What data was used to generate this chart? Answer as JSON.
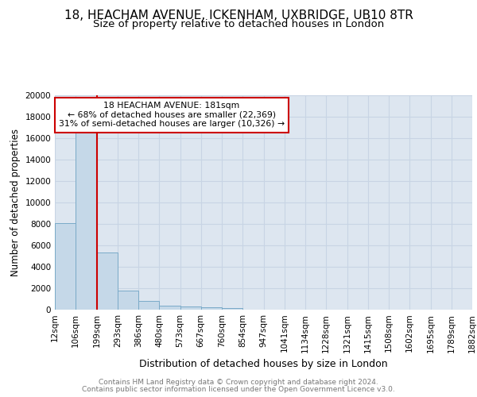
{
  "title1": "18, HEACHAM AVENUE, ICKENHAM, UXBRIDGE, UB10 8TR",
  "title2": "Size of property relative to detached houses in London",
  "xlabel": "Distribution of detached houses by size in London",
  "ylabel": "Number of detached properties",
  "bin_labels": [
    "12sqm",
    "106sqm",
    "199sqm",
    "293sqm",
    "386sqm",
    "480sqm",
    "573sqm",
    "667sqm",
    "760sqm",
    "854sqm",
    "947sqm",
    "1041sqm",
    "1134sqm",
    "1228sqm",
    "1321sqm",
    "1415sqm",
    "1508sqm",
    "1602sqm",
    "1695sqm",
    "1789sqm",
    "1882sqm"
  ],
  "bar_heights": [
    8100,
    16500,
    5300,
    1750,
    800,
    350,
    270,
    230,
    150,
    0,
    0,
    0,
    0,
    0,
    0,
    0,
    0,
    0,
    0,
    0
  ],
  "bar_color": "#c5d8e8",
  "bar_edge_color": "#7aaac8",
  "grid_color": "#c8d4e4",
  "bg_color": "#dde6f0",
  "vline_color": "#cc0000",
  "annotation_line1": "18 HEACHAM AVENUE: 181sqm",
  "annotation_line2": "← 68% of detached houses are smaller (22,369)",
  "annotation_line3": "31% of semi-detached houses are larger (10,326) →",
  "annotation_box_color": "#cc0000",
  "ylim": [
    0,
    20000
  ],
  "yticks": [
    0,
    2000,
    4000,
    6000,
    8000,
    10000,
    12000,
    14000,
    16000,
    18000,
    20000
  ],
  "footer1": "Contains HM Land Registry data © Crown copyright and database right 2024.",
  "footer2": "Contains public sector information licensed under the Open Government Licence v3.0.",
  "title1_fontsize": 11,
  "title2_fontsize": 9.5,
  "xlabel_fontsize": 9,
  "ylabel_fontsize": 8.5,
  "tick_fontsize": 7.5,
  "footer_fontsize": 6.5
}
